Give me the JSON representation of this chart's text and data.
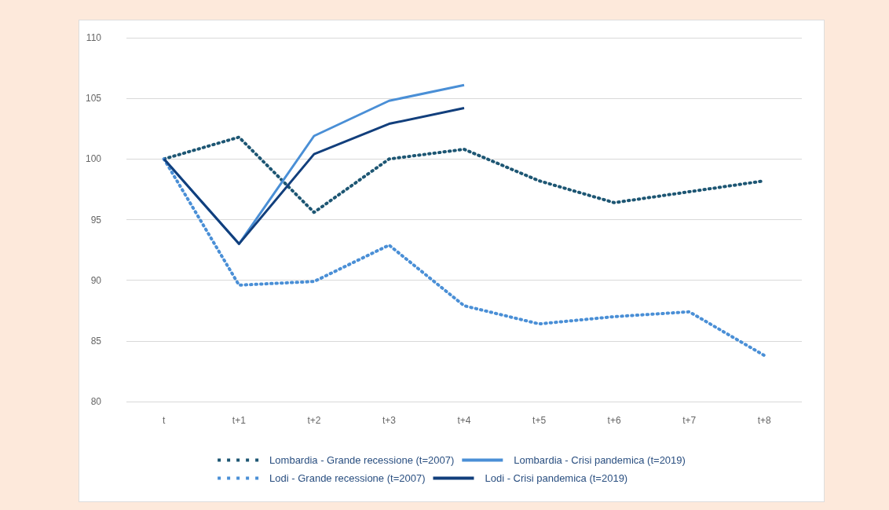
{
  "chart_data": {
    "type": "line",
    "categories": [
      "t",
      "t+1",
      "t+2",
      "t+3",
      "t+4",
      "t+5",
      "t+6",
      "t+7",
      "t+8"
    ],
    "series": [
      {
        "name": "Lombardia - Grande recessione (t=2007)",
        "color": "#1d5673",
        "line_style": "dotted",
        "values": [
          100,
          101.8,
          95.6,
          100.0,
          100.8,
          98.2,
          96.4,
          97.3,
          98.2
        ]
      },
      {
        "name": "Lombardia - Crisi pandemica (t=2019)",
        "color": "#4a8fd6",
        "line_style": "solid",
        "values": [
          100,
          93.0,
          101.9,
          104.8,
          106.1,
          null,
          null,
          null,
          null
        ]
      },
      {
        "name": "Lodi - Grande recessione (t=2007)",
        "color": "#4a8fd6",
        "line_style": "dotted",
        "values": [
          100,
          89.6,
          89.9,
          92.9,
          87.9,
          86.4,
          87.0,
          87.4,
          83.8
        ]
      },
      {
        "name": "Lodi - Crisi pandemica (t=2019)",
        "color": "#123f7c",
        "line_style": "solid",
        "values": [
          100,
          93.0,
          100.4,
          102.9,
          104.2,
          null,
          null,
          null,
          null
        ]
      }
    ],
    "ylim": [
      80,
      110
    ],
    "yticks": [
      80,
      85,
      90,
      95,
      100,
      105,
      110
    ],
    "grid": "y",
    "legend": "bottom",
    "marker": "none"
  }
}
